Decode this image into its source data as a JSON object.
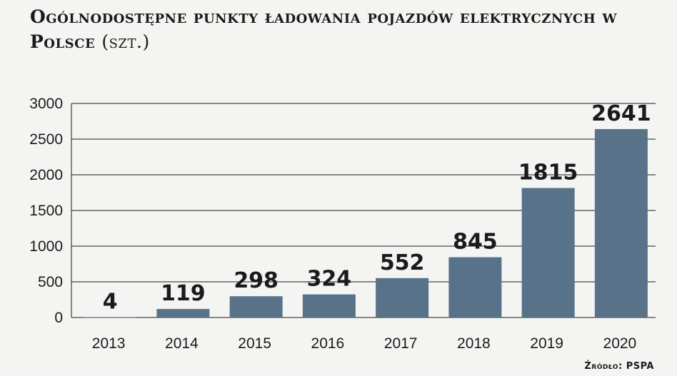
{
  "title": {
    "main": "Ogólnodostępne punkty ładowania pojazdów elektrycznych w Polsce",
    "unit": "(szt.)"
  },
  "source": "Źródło: PSPA",
  "colors": {
    "bar": "#587289",
    "grid": "#1a1a1a",
    "text": "#1a1a1a",
    "background": "#f4f4f2"
  },
  "chart_data": {
    "type": "bar",
    "categories": [
      "2013",
      "2014",
      "2015",
      "2016",
      "2017",
      "2018",
      "2019",
      "2020"
    ],
    "values": [
      4,
      119,
      298,
      324,
      552,
      845,
      1815,
      2641
    ],
    "ylim": [
      0,
      3000
    ],
    "yticks": [
      "0",
      "500",
      "1000",
      "1500",
      "2000",
      "2500",
      "3000"
    ],
    "grid": true,
    "data_labels": true,
    "xlabel": "",
    "ylabel": ""
  }
}
